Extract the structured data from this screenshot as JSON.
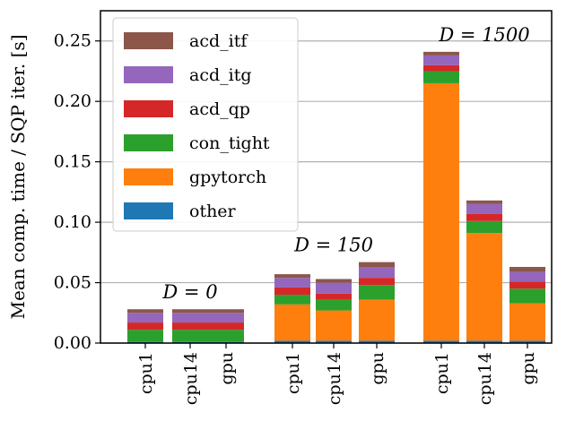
{
  "chart_data": {
    "type": "bar",
    "stacked": true,
    "ylabel": "Mean comp. time / SQP iter. [s]",
    "xlabel": "",
    "ylim": [
      0,
      0.275
    ],
    "yticks": [
      0.0,
      0.05,
      0.1,
      0.15,
      0.2,
      0.25
    ],
    "ytick_labels": [
      "0.00",
      "0.05",
      "0.10",
      "0.15",
      "0.20",
      "0.25"
    ],
    "grid": "horizontal",
    "legend_position": "top-left",
    "categories": [
      "cpu1",
      "cpu14",
      "gpu",
      "cpu1",
      "cpu14",
      "gpu",
      "cpu1",
      "cpu14",
      "gpu"
    ],
    "groups": [
      {
        "label": "D = 0",
        "start": 0,
        "count": 3
      },
      {
        "label": "D = 150",
        "start": 3,
        "count": 3
      },
      {
        "label": "D = 1500",
        "start": 6,
        "count": 3
      }
    ],
    "series": [
      {
        "name": "other",
        "color": "#1f77b4",
        "values": [
          0.001,
          0.001,
          0.001,
          0.002,
          0.002,
          0.002,
          0.002,
          0.002,
          0.002
        ]
      },
      {
        "name": "gpytorch",
        "color": "#ff7f0e",
        "values": [
          0.0,
          0.0,
          0.0,
          0.03,
          0.025,
          0.034,
          0.213,
          0.089,
          0.031
        ]
      },
      {
        "name": "con_tight",
        "color": "#2ca02c",
        "values": [
          0.01,
          0.01,
          0.01,
          0.008,
          0.009,
          0.012,
          0.01,
          0.01,
          0.012
        ]
      },
      {
        "name": "acd_qp",
        "color": "#d62728",
        "values": [
          0.006,
          0.006,
          0.006,
          0.006,
          0.005,
          0.006,
          0.005,
          0.006,
          0.006
        ]
      },
      {
        "name": "acd_itg",
        "color": "#9467bd",
        "values": [
          0.008,
          0.008,
          0.008,
          0.008,
          0.009,
          0.009,
          0.008,
          0.008,
          0.008
        ]
      },
      {
        "name": "acd_itf",
        "color": "#8c564b",
        "values": [
          0.003,
          0.003,
          0.003,
          0.003,
          0.003,
          0.004,
          0.003,
          0.003,
          0.004
        ]
      }
    ]
  }
}
